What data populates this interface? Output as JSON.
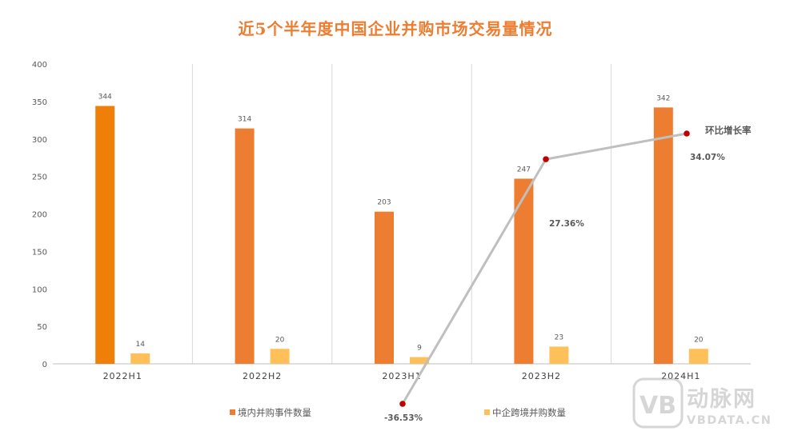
{
  "chart_data": {
    "type": "bar",
    "title": "近5个半年度中国企业并购市场交易量情况",
    "categories": [
      "2022H1",
      "2022H2",
      "2023H1",
      "2023H2",
      "2024H1"
    ],
    "ylim": [
      0,
      400
    ],
    "yticks": [
      "0",
      "50",
      "100",
      "150",
      "200",
      "250",
      "300",
      "350",
      "400"
    ],
    "grid": "vertical category separators",
    "legend_position": "bottom",
    "series": [
      {
        "name": "境内并购事件数量",
        "values": [
          344,
          314,
          203,
          247,
          342
        ],
        "labels": [
          "344",
          "314",
          "203",
          "247",
          "342"
        ],
        "color": "#ED7D31"
      },
      {
        "name": "中企跨境并购数量",
        "values": [
          14,
          20,
          9,
          23,
          20
        ],
        "labels": [
          "14",
          "20",
          "9",
          "23",
          "20"
        ],
        "color": "#FFC05A"
      }
    ],
    "growth_line": {
      "name": "环比增长率",
      "categories": [
        "2023H1",
        "2023H2",
        "2024H1"
      ],
      "values": [
        -36.53,
        27.36,
        34.07
      ],
      "labels": [
        "-36.53%",
        "27.36%",
        "34.07%"
      ],
      "line_color": "#BFBFBF",
      "marker_color": "#C00000"
    },
    "highlight_color": "#F07F0A",
    "title_color": "#ED7D31"
  },
  "watermark": {
    "brand": "动脉网",
    "domain": "VBDATA.CN"
  }
}
